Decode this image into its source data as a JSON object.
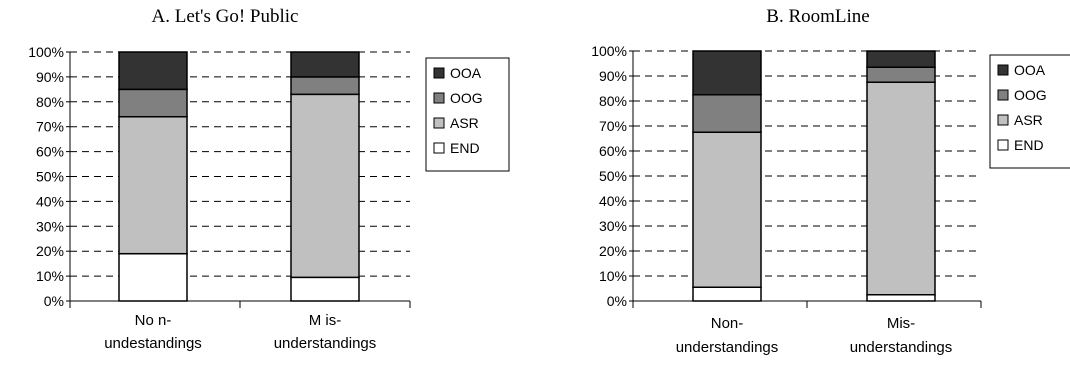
{
  "chart_data": [
    {
      "type": "bar",
      "stacked": true,
      "title": "A. Let's Go! Public",
      "categories": [
        [
          "No n-",
          "undestandings"
        ],
        [
          "M is-",
          "understandings"
        ]
      ],
      "series": [
        {
          "name": "END",
          "values": [
            19,
            9.5
          ]
        },
        {
          "name": "ASR",
          "values": [
            55,
            73.5
          ]
        },
        {
          "name": "OOG",
          "values": [
            11,
            7
          ]
        },
        {
          "name": "OOA",
          "values": [
            15,
            10
          ]
        }
      ],
      "ylim": [
        0,
        100
      ],
      "yticks": [
        "0%",
        "10%",
        "20%",
        "30%",
        "40%",
        "50%",
        "60%",
        "70%",
        "80%",
        "90%",
        "100%"
      ],
      "legend_order": [
        "OOA",
        "OOG",
        "ASR",
        "END"
      ],
      "legend_position": "right",
      "grid": "dashed horizontal"
    },
    {
      "type": "bar",
      "stacked": true,
      "title": "B. RoomLine",
      "categories": [
        [
          "Non-",
          "understandings"
        ],
        [
          "Mis-",
          "understandings"
        ]
      ],
      "series": [
        {
          "name": "END",
          "values": [
            5.5,
            2.5
          ]
        },
        {
          "name": "ASR",
          "values": [
            62,
            85
          ]
        },
        {
          "name": "OOG",
          "values": [
            15,
            6
          ]
        },
        {
          "name": "OOA",
          "values": [
            17.5,
            6.5
          ]
        }
      ],
      "ylim": [
        0,
        100
      ],
      "yticks": [
        "0%",
        "10%",
        "20%",
        "30%",
        "40%",
        "50%",
        "60%",
        "70%",
        "80%",
        "90%",
        "100%"
      ],
      "legend_order": [
        "OOA",
        "OOG",
        "ASR",
        "END"
      ],
      "legend_position": "right",
      "grid": "dashed horizontal"
    }
  ],
  "colors": {
    "OOA": "#333333",
    "OOG": "#808080",
    "ASR": "#c0c0c0",
    "END": "#ffffff"
  }
}
